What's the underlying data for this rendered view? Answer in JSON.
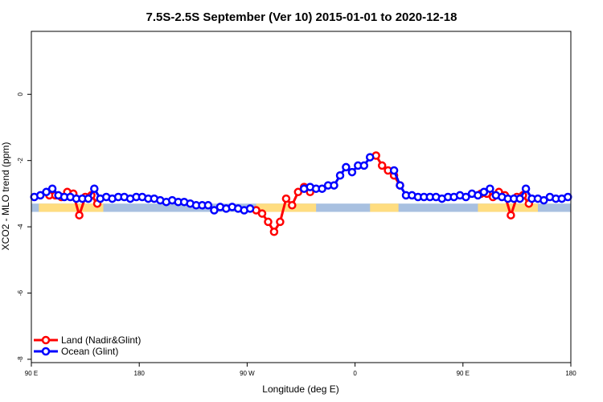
{
  "chart_data": {
    "type": "line",
    "title": "7.5S-2.5S September (Ver 10)   2015-01-01 to 2020-12-18",
    "xlabel": "Longitude (deg E)",
    "ylabel": "XCO2 - MLO trend (ppm)",
    "xlim": [
      0,
      360
    ],
    "ylim": [
      -8.1,
      1.9
    ],
    "x_ticks": [
      {
        "value": 0,
        "label": "90 E"
      },
      {
        "value": 72,
        "label": "180"
      },
      {
        "value": 144,
        "label": "90 W"
      },
      {
        "value": 216,
        "label": "0"
      },
      {
        "value": 288,
        "label": "90 E"
      },
      {
        "value": 360,
        "label": "180"
      }
    ],
    "y_ticks": [
      {
        "value": 0,
        "label": "0"
      },
      {
        "value": -2,
        "label": "-2"
      },
      {
        "value": -4,
        "label": "-4"
      },
      {
        "value": -6,
        "label": "-6"
      },
      {
        "value": -8,
        "label": "-8"
      }
    ],
    "legend": {
      "position": "bottom-left"
    },
    "series": [
      {
        "name": "Land (Nadir&Glint)",
        "color": "#ff0000",
        "segments": [
          [
            [
              12,
              -3.05
            ],
            [
              16,
              -3.05
            ],
            [
              20,
              -3.1
            ],
            [
              24,
              -2.95
            ],
            [
              28,
              -3.0
            ],
            [
              32,
              -3.65
            ],
            [
              36,
              -3.1
            ],
            [
              40,
              -3.05
            ],
            [
              44,
              -3.3
            ]
          ],
          [
            [
              150,
              -3.5
            ],
            [
              154,
              -3.6
            ],
            [
              158,
              -3.85
            ],
            [
              162,
              -4.15
            ],
            [
              166,
              -3.85
            ],
            [
              170,
              -3.15
            ],
            [
              174,
              -3.35
            ],
            [
              178,
              -2.95
            ],
            [
              182,
              -2.8
            ],
            [
              186,
              -2.95
            ]
          ],
          [
            [
              230,
              -1.85
            ],
            [
              234,
              -2.15
            ],
            [
              238,
              -2.3
            ],
            [
              242,
              -2.45
            ],
            [
              246,
              -2.75
            ]
          ],
          [
            [
              300,
              -3.0
            ],
            [
              304,
              -3.0
            ],
            [
              308,
              -3.1
            ],
            [
              312,
              -2.95
            ],
            [
              316,
              -3.05
            ],
            [
              320,
              -3.65
            ],
            [
              324,
              -3.1
            ],
            [
              328,
              -3.05
            ],
            [
              332,
              -3.3
            ]
          ]
        ]
      },
      {
        "name": "Ocean (Glint)",
        "color": "#0000ff",
        "segments": [
          [
            [
              2,
              -3.1
            ],
            [
              6,
              -3.05
            ],
            [
              10,
              -2.95
            ],
            [
              14,
              -2.85
            ],
            [
              18,
              -3.05
            ],
            [
              22,
              -3.1
            ],
            [
              26,
              -3.1
            ],
            [
              30,
              -3.15
            ],
            [
              34,
              -3.15
            ],
            [
              38,
              -3.15
            ],
            [
              42,
              -2.85
            ],
            [
              46,
              -3.15
            ],
            [
              50,
              -3.1
            ],
            [
              54,
              -3.15
            ],
            [
              58,
              -3.1
            ],
            [
              62,
              -3.1
            ],
            [
              66,
              -3.15
            ],
            [
              70,
              -3.1
            ],
            [
              74,
              -3.1
            ],
            [
              78,
              -3.15
            ],
            [
              82,
              -3.15
            ],
            [
              86,
              -3.2
            ],
            [
              90,
              -3.25
            ],
            [
              94,
              -3.2
            ],
            [
              98,
              -3.25
            ],
            [
              102,
              -3.25
            ],
            [
              106,
              -3.3
            ],
            [
              110,
              -3.35
            ],
            [
              114,
              -3.35
            ],
            [
              118,
              -3.35
            ],
            [
              122,
              -3.5
            ],
            [
              126,
              -3.4
            ],
            [
              130,
              -3.45
            ],
            [
              134,
              -3.4
            ],
            [
              138,
              -3.45
            ],
            [
              142,
              -3.5
            ],
            [
              146,
              -3.45
            ]
          ],
          [
            [
              182,
              -2.85
            ],
            [
              186,
              -2.8
            ],
            [
              190,
              -2.85
            ],
            [
              194,
              -2.85
            ],
            [
              198,
              -2.75
            ],
            [
              202,
              -2.75
            ],
            [
              206,
              -2.45
            ],
            [
              210,
              -2.2
            ],
            [
              214,
              -2.35
            ],
            [
              218,
              -2.15
            ],
            [
              222,
              -2.15
            ],
            [
              226,
              -1.9
            ]
          ],
          [
            [
              242,
              -2.3
            ],
            [
              246,
              -2.75
            ],
            [
              250,
              -3.05
            ],
            [
              254,
              -3.05
            ],
            [
              258,
              -3.1
            ],
            [
              262,
              -3.1
            ],
            [
              266,
              -3.1
            ],
            [
              270,
              -3.1
            ],
            [
              274,
              -3.15
            ],
            [
              278,
              -3.1
            ],
            [
              282,
              -3.1
            ],
            [
              286,
              -3.05
            ],
            [
              290,
              -3.1
            ],
            [
              294,
              -3.0
            ],
            [
              298,
              -3.05
            ],
            [
              302,
              -2.95
            ],
            [
              306,
              -2.85
            ],
            [
              310,
              -3.05
            ],
            [
              314,
              -3.1
            ],
            [
              318,
              -3.15
            ],
            [
              322,
              -3.15
            ],
            [
              326,
              -3.15
            ],
            [
              330,
              -2.85
            ],
            [
              334,
              -3.15
            ],
            [
              338,
              -3.15
            ],
            [
              342,
              -3.2
            ],
            [
              346,
              -3.1
            ],
            [
              350,
              -3.15
            ],
            [
              354,
              -3.15
            ],
            [
              358,
              -3.1
            ]
          ]
        ]
      }
    ],
    "map_strip": {
      "ocean_color": "#a8c0e0",
      "land_color": "#ffdd80",
      "y_range": [
        -3.3,
        -3.55
      ],
      "land_bands": [
        [
          5,
          48
        ],
        [
          150,
          190
        ],
        [
          226,
          245
        ],
        [
          298,
          338
        ]
      ]
    }
  }
}
